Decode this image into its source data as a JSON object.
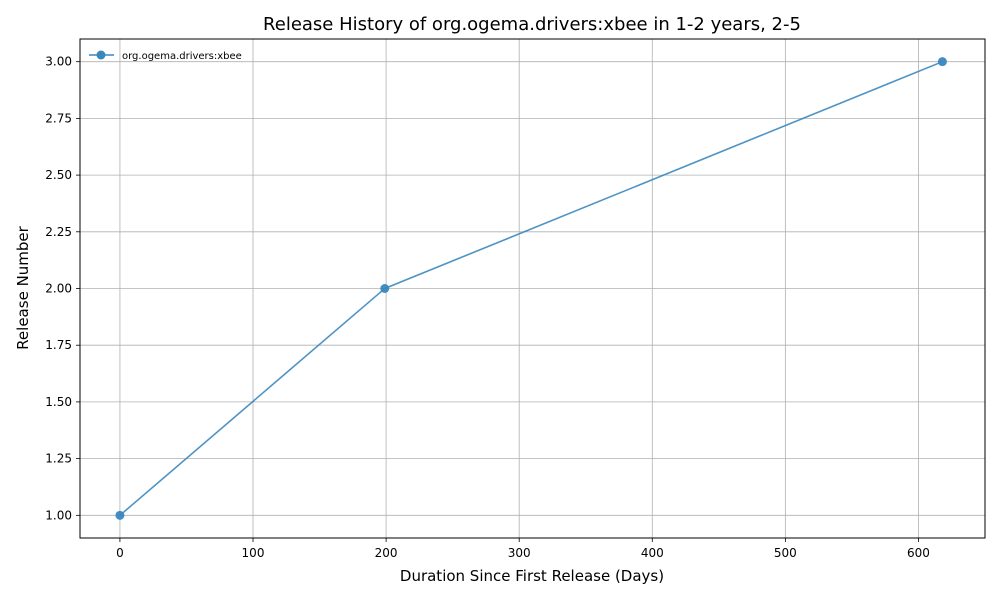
{
  "chart_data": {
    "type": "line",
    "title": "Release History of org.ogema.drivers:xbee in 1-2 years, 2-5",
    "xlabel": "Duration Since First Release (Days)",
    "ylabel": "Release Number",
    "xlim": [
      -30,
      650
    ],
    "ylim": [
      0.9,
      3.1
    ],
    "xticks": [
      0,
      100,
      200,
      300,
      400,
      500,
      600
    ],
    "yticks": [
      1.0,
      1.25,
      1.5,
      1.75,
      2.0,
      2.25,
      2.5,
      2.75,
      3.0
    ],
    "ytick_labels": [
      "1.00",
      "1.25",
      "1.50",
      "1.75",
      "2.00",
      "2.25",
      "2.50",
      "2.75",
      "3.00"
    ],
    "grid": true,
    "legend_position": "top-left",
    "series": [
      {
        "name": "org.ogema.drivers:xbee",
        "color": "#3a87bf",
        "marker": "circle",
        "x": [
          0,
          199,
          618
        ],
        "y": [
          1,
          2,
          3
        ]
      }
    ]
  }
}
